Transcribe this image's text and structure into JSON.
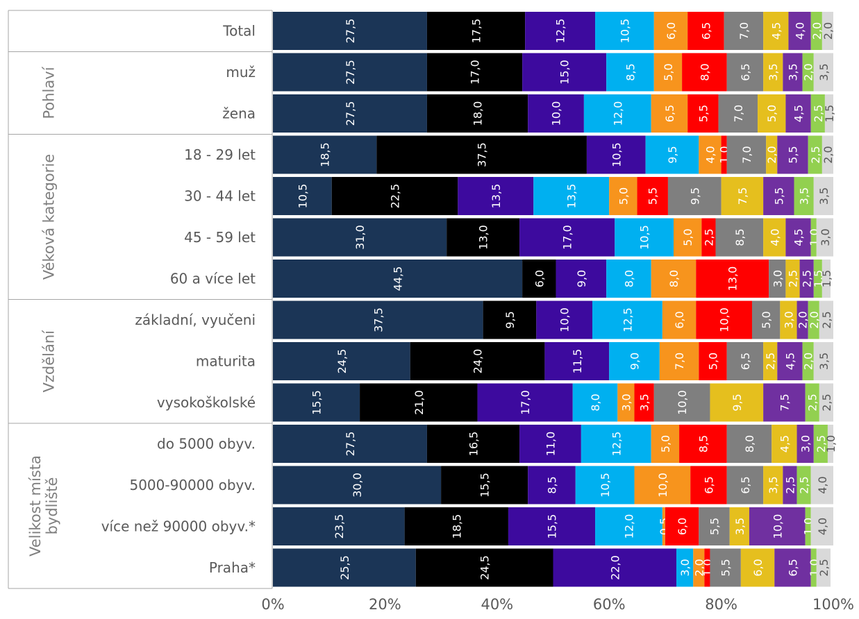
{
  "chart_data": {
    "type": "bar",
    "orientation": "horizontal",
    "stacked": true,
    "percent": true,
    "xlim": [
      0,
      100
    ],
    "x_ticks": [
      "0%",
      "20%",
      "40%",
      "60%",
      "80%",
      "100%"
    ],
    "groups": [
      {
        "label": "",
        "rows": [
          "Total"
        ]
      },
      {
        "label": "Pohlaví",
        "rows": [
          "muž",
          "žena"
        ]
      },
      {
        "label": "Věková kategorie",
        "rows": [
          "18 - 29 let",
          "30 - 44 let",
          "45 - 59 let",
          "60 a více let"
        ]
      },
      {
        "label": "Vzdělání",
        "rows": [
          "základní, vyučeni",
          "maturita",
          "vysokoškolské"
        ]
      },
      {
        "label": "Velikost místa bydliště",
        "rows": [
          "do 5000 obyv.",
          "5000-90000 obyv.",
          "více než 90000 obyv.*",
          "Praha*"
        ]
      }
    ],
    "categories": [
      "Total",
      "muž",
      "žena",
      "18 - 29 let",
      "30 - 44 let",
      "45 - 59 let",
      "60 a více let",
      "základní, vyučeni",
      "maturita",
      "vysokoškolské",
      "do 5000 obyv.",
      "5000-90000 obyv.",
      "více než 90000 obyv.*",
      "Praha*"
    ],
    "series": [
      {
        "color": "#1b3556",
        "label_color": "#ffffff",
        "values": [
          27.5,
          27.5,
          27.5,
          18.5,
          10.5,
          31.0,
          44.5,
          37.5,
          24.5,
          15.5,
          27.5,
          30.0,
          23.5,
          25.5
        ]
      },
      {
        "color": "#000000",
        "label_color": "#ffffff",
        "values": [
          17.5,
          17.0,
          18.0,
          37.5,
          22.5,
          13.0,
          6.0,
          9.5,
          24.0,
          21.0,
          16.5,
          15.5,
          18.5,
          24.5
        ]
      },
      {
        "color": "#3d0a9e",
        "label_color": "#ffffff",
        "values": [
          12.5,
          15.0,
          10.0,
          10.5,
          13.5,
          17.0,
          9.0,
          10.0,
          11.5,
          17.0,
          11.0,
          8.5,
          15.5,
          22.0
        ]
      },
      {
        "color": "#00b0f0",
        "label_color": "#ffffff",
        "values": [
          10.5,
          8.5,
          12.0,
          9.5,
          13.5,
          10.5,
          8.0,
          12.5,
          9.0,
          8.0,
          12.5,
          10.5,
          12.0,
          3.0
        ]
      },
      {
        "color": "#f7941d",
        "label_color": "#ffffff",
        "values": [
          6.0,
          5.0,
          6.5,
          4.0,
          5.0,
          5.0,
          8.0,
          6.0,
          7.0,
          3.0,
          5.0,
          10.0,
          0.5,
          2.0
        ]
      },
      {
        "color": "#ff0000",
        "label_color": "#ffffff",
        "values": [
          6.5,
          8.0,
          5.5,
          1.0,
          5.5,
          2.5,
          13.0,
          10.0,
          5.0,
          3.5,
          8.5,
          6.5,
          6.0,
          1.0
        ]
      },
      {
        "color": "#7f7f7f",
        "label_color": "#ffffff",
        "values": [
          7.0,
          6.5,
          7.0,
          7.0,
          9.5,
          8.5,
          3.0,
          5.0,
          6.5,
          10.0,
          8.0,
          6.5,
          5.5,
          5.5
        ]
      },
      {
        "color": "#e5bf1e",
        "label_color": "#ffffff",
        "values": [
          4.5,
          3.5,
          5.0,
          2.0,
          7.5,
          4.0,
          2.5,
          3.0,
          2.5,
          9.5,
          4.5,
          3.5,
          3.5,
          6.0
        ]
      },
      {
        "color": "#7030a0",
        "label_color": "#ffffff",
        "values": [
          4.0,
          3.5,
          4.5,
          5.5,
          5.5,
          4.5,
          2.5,
          2.0,
          4.5,
          7.5,
          3.0,
          2.5,
          10.0,
          6.5
        ]
      },
      {
        "color": "#92d050",
        "label_color": "#ffffff",
        "values": [
          2.0,
          2.0,
          2.5,
          2.5,
          3.5,
          1.0,
          1.5,
          2.0,
          2.0,
          2.5,
          2.5,
          2.5,
          1.0,
          1.0
        ]
      },
      {
        "color": "#d9d9d9",
        "label_color": "#595959",
        "values": [
          2.0,
          3.5,
          1.5,
          2.0,
          3.5,
          3.0,
          1.5,
          2.5,
          3.5,
          2.5,
          1.0,
          4.0,
          4.0,
          2.5
        ]
      }
    ],
    "grid": false,
    "legend": "none"
  }
}
